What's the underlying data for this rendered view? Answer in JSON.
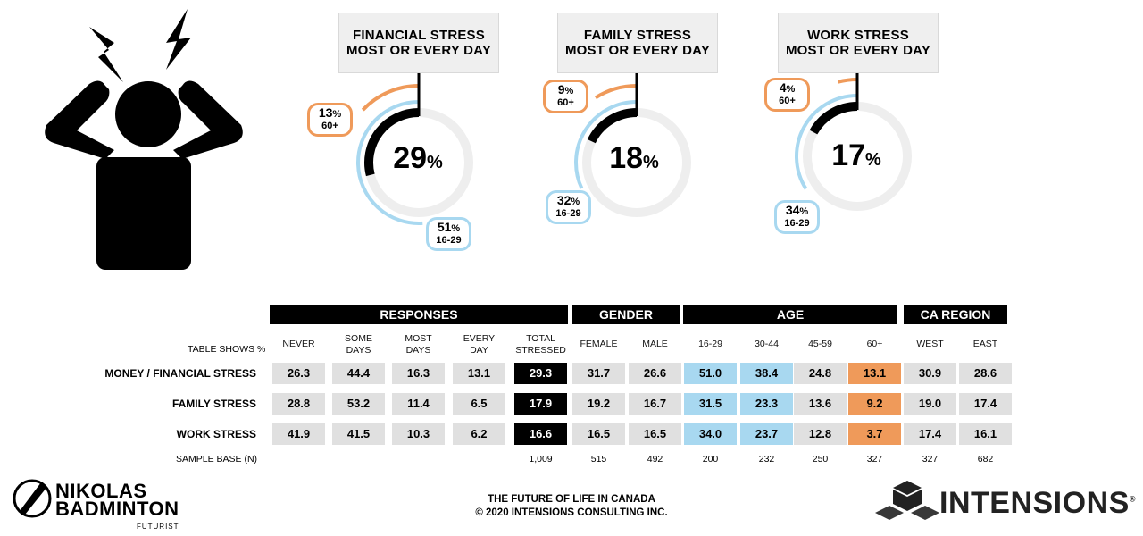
{
  "gauges": [
    {
      "title_line1": "FINANCIAL STRESS",
      "title_line2": "MOST OR EVERY DAY",
      "overall": 29,
      "pct_60": 13,
      "pct_16_29": 51
    },
    {
      "title_line1": "FAMILY STRESS",
      "title_line2": "MOST OR EVERY DAY",
      "overall": 18,
      "pct_60": 9,
      "pct_16_29": 32
    },
    {
      "title_line1": "WORK STRESS",
      "title_line2": "MOST OR EVERY DAY",
      "overall": 17,
      "pct_60": 4,
      "pct_16_29": 34
    }
  ],
  "labels": {
    "pct_sign": "%",
    "age_60": "60+",
    "age_16_29": "16-29",
    "table_shows": "TABLE SHOWS %",
    "sample_base": "SAMPLE BASE (N)"
  },
  "table": {
    "groups": [
      "RESPONSES",
      "GENDER",
      "AGE",
      "CA REGION"
    ],
    "columns": [
      {
        "line1": "NEVER",
        "line2": ""
      },
      {
        "line1": "SOME",
        "line2": "DAYS"
      },
      {
        "line1": "MOST",
        "line2": "DAYS"
      },
      {
        "line1": "EVERY",
        "line2": "DAY"
      },
      {
        "line1": "TOTAL",
        "line2": "STRESSED"
      },
      {
        "line1": "FEMALE",
        "line2": ""
      },
      {
        "line1": "MALE",
        "line2": ""
      },
      {
        "line1": "16-29",
        "line2": ""
      },
      {
        "line1": "30-44",
        "line2": ""
      },
      {
        "line1": "45-59",
        "line2": ""
      },
      {
        "line1": "60+",
        "line2": ""
      },
      {
        "line1": "WEST",
        "line2": ""
      },
      {
        "line1": "EAST",
        "line2": ""
      }
    ],
    "rows": [
      {
        "label": "MONEY / FINANCIAL STRESS",
        "values": [
          "26.3",
          "44.4",
          "16.3",
          "13.1",
          "29.3",
          "31.7",
          "26.6",
          "51.0",
          "38.4",
          "24.8",
          "13.1",
          "30.9",
          "28.6"
        ]
      },
      {
        "label": "FAMILY STRESS",
        "values": [
          "28.8",
          "53.2",
          "11.4",
          "6.5",
          "17.9",
          "19.2",
          "16.7",
          "31.5",
          "23.3",
          "13.6",
          "9.2",
          "19.0",
          "17.4"
        ]
      },
      {
        "label": "WORK STRESS",
        "values": [
          "41.9",
          "41.5",
          "10.3",
          "6.2",
          "16.6",
          "16.5",
          "16.5",
          "34.0",
          "23.7",
          "12.8",
          "3.7",
          "17.4",
          "16.1"
        ]
      }
    ],
    "sample_base": [
      "",
      "",
      "",
      "",
      "1,009",
      "515",
      "492",
      "200",
      "232",
      "250",
      "327",
      "327",
      "682"
    ]
  },
  "chart_data": {
    "type": "table",
    "title": "",
    "columns": [
      "NEVER",
      "SOME DAYS",
      "MOST DAYS",
      "EVERY DAY",
      "TOTAL STRESSED",
      "FEMALE",
      "MALE",
      "16-29",
      "30-44",
      "45-59",
      "60+",
      "WEST",
      "EAST"
    ],
    "rows": [
      "MONEY / FINANCIAL STRESS",
      "FAMILY STRESS",
      "WORK STRESS"
    ],
    "values": [
      [
        26.3,
        44.4,
        16.3,
        13.1,
        29.3,
        31.7,
        26.6,
        51.0,
        38.4,
        24.8,
        13.1,
        30.9,
        28.6
      ],
      [
        28.8,
        53.2,
        11.4,
        6.5,
        17.9,
        19.2,
        16.7,
        31.5,
        23.3,
        13.6,
        9.2,
        19.0,
        17.4
      ],
      [
        41.9,
        41.5,
        10.3,
        6.2,
        16.6,
        16.5,
        16.5,
        34.0,
        23.7,
        12.8,
        3.7,
        17.4,
        16.1
      ]
    ],
    "gauges": [
      {
        "overall": 29,
        "age_60_plus": 13,
        "age_16_29": 51
      },
      {
        "overall": 18,
        "age_60_plus": 9,
        "age_16_29": 32
      },
      {
        "overall": 17,
        "age_60_plus": 4,
        "age_16_29": 34
      }
    ]
  },
  "colors": {
    "young": "#a8d8f0",
    "old": "#ef9a5a",
    "ring": "#eeeeee",
    "total": "#000000",
    "cell": "#e0e0e0"
  },
  "footer": {
    "line1": "THE FUTURE OF LIFE IN CANADA",
    "line2": "© 2020 INTENSIONS CONSULTING INC."
  },
  "brands": {
    "left": "NIKOLAS",
    "left2": "BADMINTON",
    "left_sub": "FUTURIST",
    "right": "INTENSIONS",
    "right_mark": "®"
  },
  "icons": {
    "hero": "stressed-person-icon",
    "left_logo": "rocket-logo-icon",
    "right_logo": "cubes-logo-icon"
  }
}
